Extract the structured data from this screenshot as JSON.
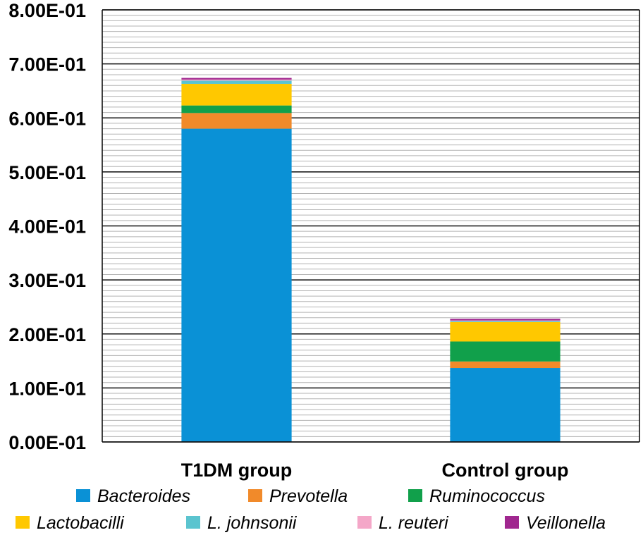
{
  "chart_data": {
    "type": "bar",
    "stacked": true,
    "categories": [
      "T1DM group",
      "Control group"
    ],
    "ylim": [
      0,
      0.8
    ],
    "yticks": [
      {
        "value": 0.0,
        "label": "0.00E-01"
      },
      {
        "value": 0.1,
        "label": "1.00E-01"
      },
      {
        "value": 0.2,
        "label": "2.00E-01"
      },
      {
        "value": 0.3,
        "label": "3.00E-01"
      },
      {
        "value": 0.4,
        "label": "4.00E-01"
      },
      {
        "value": 0.5,
        "label": "5.00E-01"
      },
      {
        "value": 0.6,
        "label": "6.00E-01"
      },
      {
        "value": 0.7,
        "label": "7.00E-01"
      },
      {
        "value": 0.8,
        "label": "8.00E-01"
      }
    ],
    "minor_grid_step": 0.01,
    "grid": true,
    "legend_position": "bottom",
    "series": [
      {
        "name": "Bacteroides",
        "color": "#0a91d6",
        "values": [
          0.58,
          0.137
        ]
      },
      {
        "name": "Prevotella",
        "color": "#f18a2a",
        "values": [
          0.029,
          0.012
        ]
      },
      {
        "name": "Ruminococcus",
        "color": "#11a04b",
        "values": [
          0.014,
          0.037
        ]
      },
      {
        "name": "Lactobacilli",
        "color": "#ffc800",
        "values": [
          0.04,
          0.036
        ]
      },
      {
        "name": "L. johnsonii",
        "color": "#5bc4cf",
        "values": [
          0.006,
          0.002
        ]
      },
      {
        "name": "L. reuteri",
        "color": "#f4a7c8",
        "values": [
          0.002,
          0.001
        ]
      },
      {
        "name": "Veillonella",
        "color": "#a0278f",
        "values": [
          0.003,
          0.003
        ]
      }
    ]
  }
}
